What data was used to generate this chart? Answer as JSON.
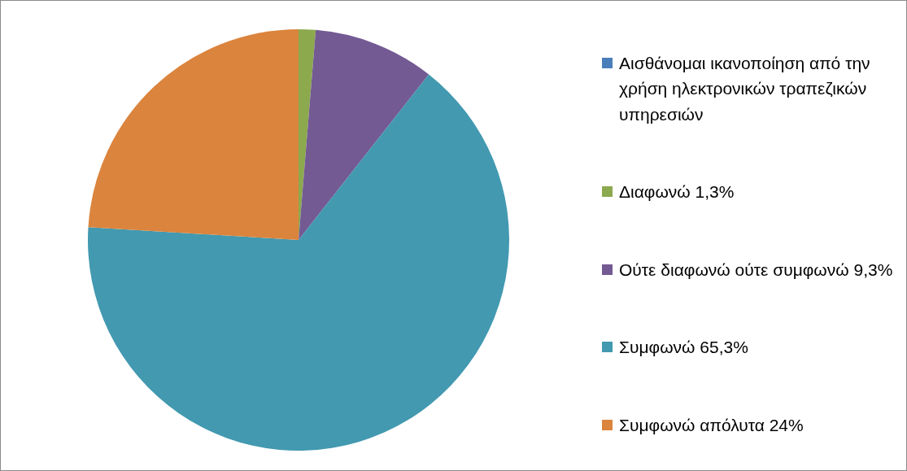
{
  "chart_data": {
    "type": "pie",
    "categories": [
      "Αισθάνομαι ικανοποίηση από την χρήση ηλεκτρονικών τραπεζικών υπηρεσιών",
      "Διαφωνώ 1,3%",
      "Ούτε διαφωνώ ούτε συμφωνώ 9,3%",
      "Συμφωνώ 65,3%",
      "Συμφωνώ απόλυτα 24%"
    ],
    "values": [
      0,
      1.3,
      9.3,
      65.3,
      24
    ],
    "colors": [
      "#4a7ebb",
      "#8ca94e",
      "#735a93",
      "#4299b0",
      "#db843d"
    ],
    "legend": "right"
  }
}
